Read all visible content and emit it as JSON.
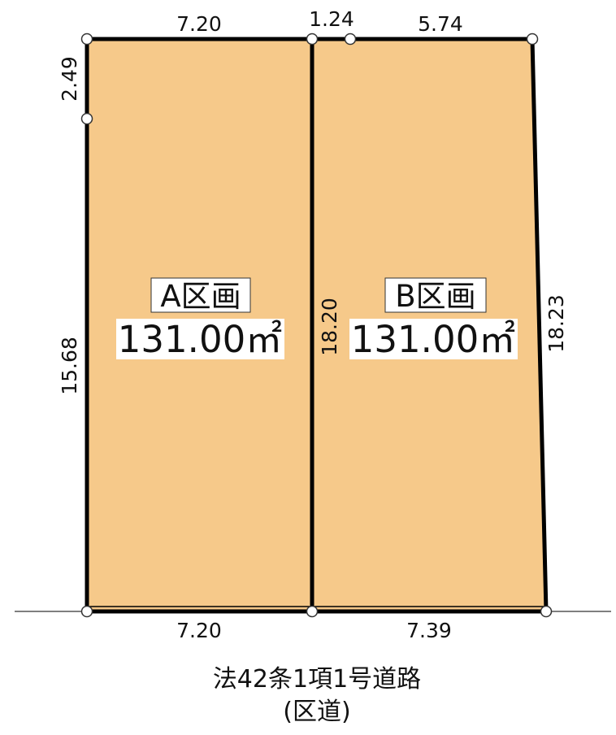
{
  "lots": [
    {
      "name": "A区画",
      "area": "131.00㎡"
    },
    {
      "name": "B区画",
      "area": "131.00㎡"
    }
  ],
  "dimensions": {
    "top_a": "7.20",
    "top_gap": "1.24",
    "top_b": "5.74",
    "left_upper": "2.49",
    "left_lower": "15.68",
    "middle": "18.20",
    "right": "18.23",
    "bottom_a": "7.20",
    "bottom_b": "7.39"
  },
  "road": {
    "line1": "法42条1項1号道路",
    "line2": "(区道)"
  },
  "colors": {
    "lot_fill": "#f6c98a",
    "boundary": "#000000",
    "road_line": "#555555",
    "marker_fill": "#ffffff"
  }
}
